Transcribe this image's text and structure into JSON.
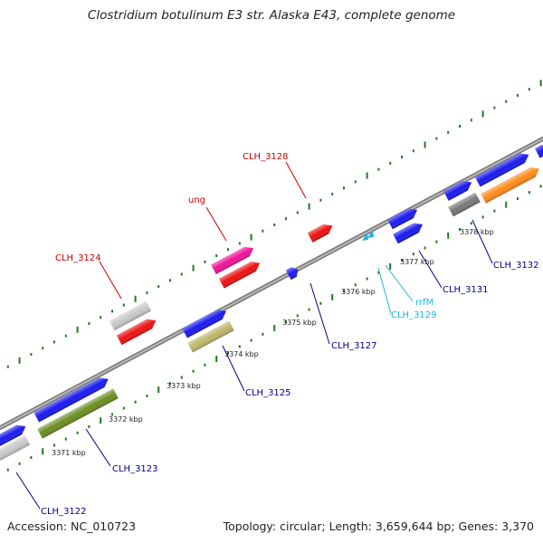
{
  "title": "Clostridium botulinum E3 str. Alaska E43, complete genome",
  "footer": {
    "accession": "Accession: NC_010723",
    "summary": "Topology: circular; Length: 3,659,644 bp; Genes: 3,370"
  },
  "colors": {
    "backbone": "#999999",
    "tick": "#1f7a1f",
    "label_red": "#cc0000",
    "label_blue": "#00008b",
    "label_cyan": "#1fb5e0"
  },
  "kbp_labels": [
    {
      "id": "k3371",
      "text": "3371 kbp"
    },
    {
      "id": "k3372",
      "text": "3372 kbp"
    },
    {
      "id": "k3373",
      "text": "3373 kbp"
    },
    {
      "id": "k3374",
      "text": "3374 kbp"
    },
    {
      "id": "k3375",
      "text": "3375 kbp"
    },
    {
      "id": "k3376",
      "text": "3376 kbp"
    },
    {
      "id": "k3377",
      "text": "3377 kbp"
    },
    {
      "id": "k3378",
      "text": "3378 kbp"
    }
  ],
  "gene_labels": [
    {
      "id": "g3122",
      "text": "CLH_3122",
      "color": "#00008b"
    },
    {
      "id": "g3123",
      "text": "CLH_3123",
      "color": "#00008b"
    },
    {
      "id": "g3124",
      "text": "CLH_3124",
      "color": "#cc0000"
    },
    {
      "id": "g3125",
      "text": "CLH_3125",
      "color": "#00008b"
    },
    {
      "id": "gung",
      "text": "ung",
      "color": "#cc0000"
    },
    {
      "id": "g3127",
      "text": "CLH_3127",
      "color": "#00008b"
    },
    {
      "id": "g3128",
      "text": "CLH_3128",
      "color": "#cc0000"
    },
    {
      "id": "grrfM",
      "text": "rrfM",
      "color": "#1fb5e0"
    },
    {
      "id": "g3129",
      "text": "CLH_3129",
      "color": "#1fb5e0"
    },
    {
      "id": "g3131",
      "text": "CLH_3131",
      "color": "#00008b"
    },
    {
      "id": "g3132",
      "text": "CLH_3132",
      "color": "#00008b"
    }
  ]
}
